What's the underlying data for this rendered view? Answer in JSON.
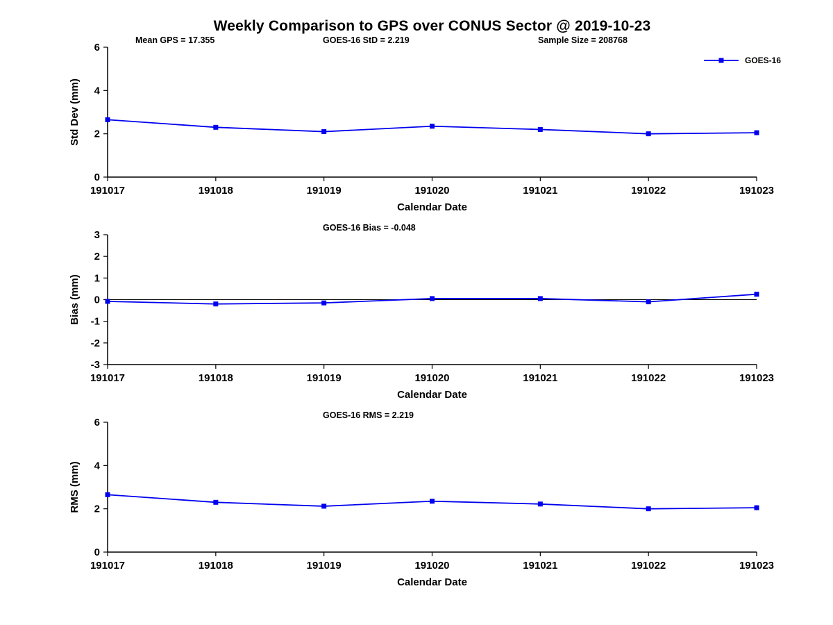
{
  "title": "Weekly Comparison to GPS over CONUS Sector @ 2019-10-23",
  "legend": {
    "label": "GOES-16",
    "color": "#0000ee"
  },
  "chart_data": [
    {
      "type": "line",
      "name": "std-dev",
      "ylabel": "Std Dev (mm)",
      "xlabel": "Calendar Date",
      "ylim": [
        0,
        6
      ],
      "yticks": [
        0,
        2,
        4,
        6
      ],
      "categories": [
        "191017",
        "191018",
        "191019",
        "191020",
        "191021",
        "191022",
        "191023"
      ],
      "series": [
        {
          "name": "GOES-16",
          "color": "#0000ee",
          "values": [
            2.65,
            2.3,
            2.1,
            2.35,
            2.2,
            2.0,
            2.05
          ]
        }
      ],
      "annotations": [
        {
          "text": "Mean GPS = 17.355",
          "x": 195
        },
        {
          "text": "GOES-16 StD = 2.219",
          "x": 465
        },
        {
          "text": "Sample Size = 208768",
          "x": 775
        }
      ],
      "zero_line": false,
      "grid": false,
      "legend_position": "top-right-outside"
    },
    {
      "type": "line",
      "name": "bias",
      "ylabel": "Bias (mm)",
      "xlabel": "Calendar Date",
      "ylim": [
        -3,
        3
      ],
      "yticks": [
        -3,
        -2,
        -1,
        0,
        1,
        2,
        3
      ],
      "categories": [
        "191017",
        "191018",
        "191019",
        "191020",
        "191021",
        "191022",
        "191023"
      ],
      "series": [
        {
          "name": "GOES-16",
          "color": "#0000ee",
          "values": [
            -0.08,
            -0.2,
            -0.15,
            0.05,
            0.05,
            -0.1,
            0.25
          ]
        }
      ],
      "annotations": [
        {
          "text": "GOES-16 Bias  = -0.048",
          "x": 465
        }
      ],
      "zero_line": true,
      "grid": false
    },
    {
      "type": "line",
      "name": "rms",
      "ylabel": "RMS (mm)",
      "xlabel": "Calendar Date",
      "ylim": [
        0,
        6
      ],
      "yticks": [
        0,
        2,
        4,
        6
      ],
      "categories": [
        "191017",
        "191018",
        "191019",
        "191020",
        "191021",
        "191022",
        "191023"
      ],
      "series": [
        {
          "name": "GOES-16",
          "color": "#0000ee",
          "values": [
            2.65,
            2.3,
            2.12,
            2.35,
            2.22,
            2.0,
            2.05
          ]
        }
      ],
      "annotations": [
        {
          "text": "GOES-16 RMS = 2.219",
          "x": 465
        }
      ],
      "zero_line": false,
      "grid": false
    }
  ]
}
